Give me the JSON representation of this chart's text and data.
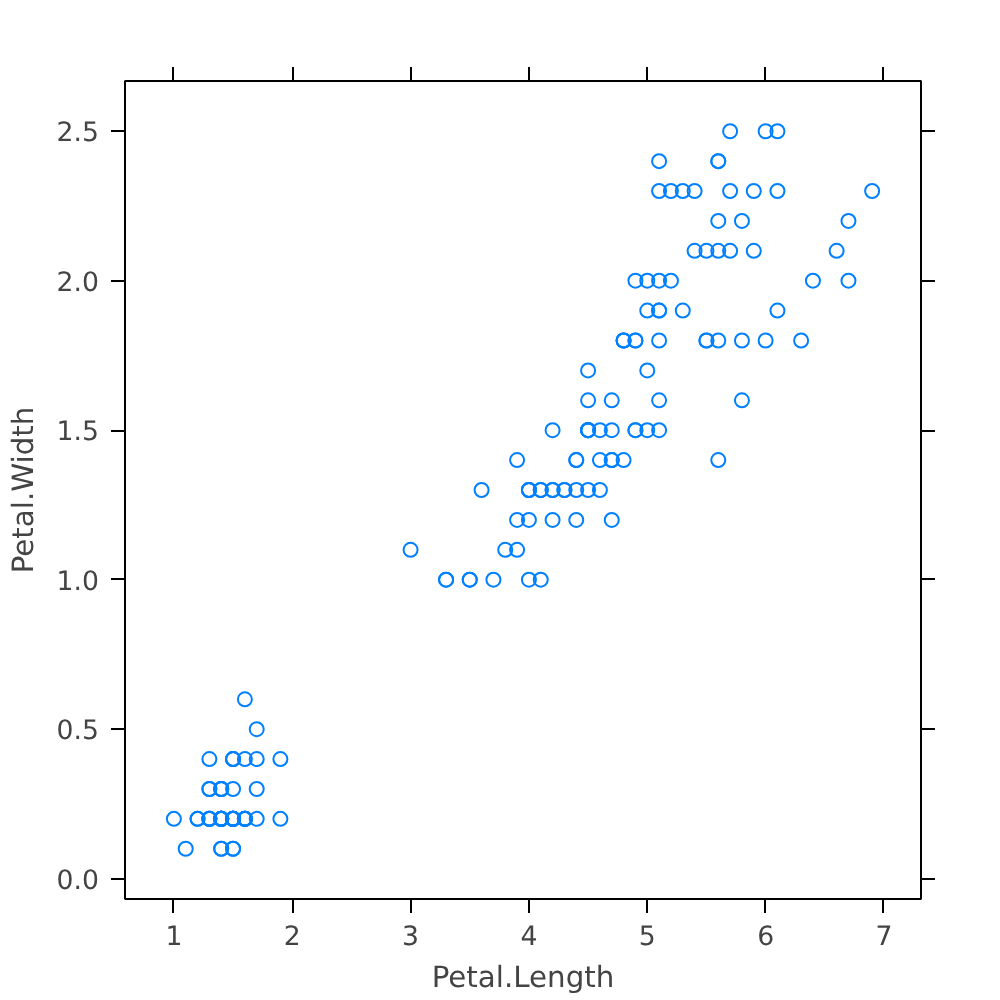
{
  "chart_data": {
    "type": "scatter",
    "xlabel": "Petal.Length",
    "ylabel": "Petal.Width",
    "xlim": [
      0.587,
      7.313
    ],
    "ylim": [
      -0.068,
      2.668
    ],
    "xticks": [
      1,
      2,
      3,
      4,
      5,
      6,
      7
    ],
    "yticks": [
      {
        "value": 0,
        "label": "0.0"
      },
      {
        "value": 0.5,
        "label": "0.5"
      },
      {
        "value": 1,
        "label": "1.0"
      },
      {
        "value": 1.5,
        "label": "1.5"
      },
      {
        "value": 2,
        "label": "2.0"
      },
      {
        "value": 2.5,
        "label": "2.5"
      }
    ],
    "grid": false,
    "marker": "circle",
    "series": [
      {
        "color": "#0080ff",
        "x": [
          1.4,
          1.4,
          1.3,
          1.5,
          1.4,
          1.7,
          1.4,
          1.5,
          1.4,
          1.5,
          1.5,
          1.6,
          1.4,
          1.1,
          1.2,
          1.5,
          1.3,
          1.4,
          1.7,
          1.5,
          1.7,
          1.5,
          1.0,
          1.7,
          1.9,
          1.6,
          1.6,
          1.5,
          1.4,
          1.6,
          1.6,
          1.5,
          1.5,
          1.4,
          1.5,
          1.2,
          1.3,
          1.4,
          1.3,
          1.5,
          1.3,
          1.3,
          1.3,
          1.6,
          1.9,
          1.4,
          1.6,
          1.4,
          1.5,
          1.4,
          4.7,
          4.5,
          4.9,
          4.0,
          4.6,
          4.5,
          4.7,
          3.3,
          4.6,
          3.9,
          3.5,
          4.2,
          4.0,
          4.7,
          3.6,
          4.4,
          4.5,
          4.1,
          4.5,
          3.9,
          4.8,
          4.0,
          4.9,
          4.7,
          4.3,
          4.4,
          4.8,
          5.0,
          4.5,
          3.5,
          3.8,
          3.7,
          3.9,
          5.1,
          4.5,
          4.5,
          4.7,
          4.4,
          4.1,
          4.0,
          4.4,
          4.6,
          4.0,
          3.3,
          4.2,
          4.2,
          4.2,
          4.3,
          3.0,
          4.1,
          6.0,
          5.1,
          5.9,
          5.6,
          5.8,
          6.6,
          4.5,
          6.3,
          5.8,
          6.1,
          5.1,
          5.3,
          5.5,
          5.0,
          5.1,
          5.3,
          5.5,
          6.7,
          6.9,
          5.0,
          5.7,
          4.9,
          6.7,
          4.9,
          5.7,
          6.0,
          4.8,
          4.9,
          5.6,
          5.8,
          6.1,
          6.4,
          5.6,
          5.1,
          5.6,
          6.1,
          5.6,
          5.5,
          4.8,
          5.4,
          5.6,
          5.1,
          5.1,
          5.9,
          5.7,
          5.2,
          5.0,
          5.2,
          5.4,
          5.1
        ],
        "values": [
          0.2,
          0.2,
          0.2,
          0.2,
          0.2,
          0.4,
          0.3,
          0.2,
          0.2,
          0.1,
          0.2,
          0.2,
          0.1,
          0.1,
          0.2,
          0.4,
          0.4,
          0.3,
          0.3,
          0.3,
          0.2,
          0.4,
          0.2,
          0.5,
          0.2,
          0.2,
          0.4,
          0.2,
          0.2,
          0.2,
          0.2,
          0.4,
          0.1,
          0.2,
          0.2,
          0.2,
          0.2,
          0.1,
          0.2,
          0.2,
          0.3,
          0.3,
          0.2,
          0.6,
          0.4,
          0.3,
          0.2,
          0.2,
          0.2,
          0.2,
          1.4,
          1.5,
          1.5,
          1.3,
          1.5,
          1.3,
          1.6,
          1.0,
          1.3,
          1.4,
          1.0,
          1.5,
          1.0,
          1.4,
          1.3,
          1.4,
          1.5,
          1.0,
          1.5,
          1.1,
          1.8,
          1.3,
          1.5,
          1.2,
          1.3,
          1.4,
          1.4,
          1.7,
          1.5,
          1.0,
          1.1,
          1.0,
          1.2,
          1.6,
          1.5,
          1.6,
          1.5,
          1.3,
          1.3,
          1.3,
          1.2,
          1.4,
          1.2,
          1.0,
          1.3,
          1.2,
          1.3,
          1.3,
          1.1,
          1.3,
          2.5,
          1.9,
          2.1,
          1.8,
          2.2,
          2.1,
          1.7,
          1.8,
          1.8,
          2.5,
          2.0,
          1.9,
          2.1,
          2.0,
          2.4,
          2.3,
          1.8,
          2.2,
          2.3,
          1.5,
          2.3,
          2.0,
          2.0,
          1.8,
          2.1,
          1.8,
          1.8,
          1.8,
          2.1,
          1.6,
          1.9,
          2.0,
          2.2,
          1.5,
          1.4,
          2.3,
          2.4,
          1.8,
          1.8,
          2.1,
          2.4,
          2.3,
          1.9,
          2.3,
          2.5,
          2.3,
          1.9,
          2.0,
          2.3,
          1.8
        ]
      }
    ]
  }
}
